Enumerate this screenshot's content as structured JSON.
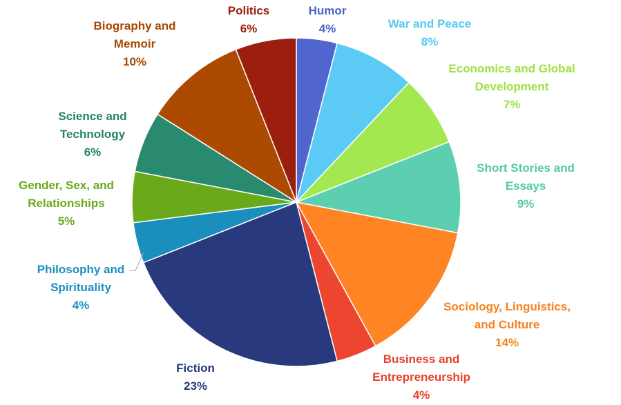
{
  "chart_data": {
    "type": "pie",
    "title": "",
    "slices": [
      {
        "label": "Humor",
        "value": 4,
        "percent_label": "4%",
        "color": "#5065CD"
      },
      {
        "label": "War and Peace",
        "value": 8,
        "percent_label": "8%",
        "color": "#5BCBF5"
      },
      {
        "label": "Economics and Global Development",
        "value": 7,
        "percent_label": "7%",
        "color": "#A4E851"
      },
      {
        "label": "Short Stories and Essays",
        "value": 9,
        "percent_label": "9%",
        "color": "#5CCFB1"
      },
      {
        "label": "Sociology, Linguistics, and Culture",
        "value": 14,
        "percent_label": "14%",
        "color": "#FF8423"
      },
      {
        "label": "Business and Entrepreneurship",
        "value": 4,
        "percent_label": "4%",
        "color": "#EC4630"
      },
      {
        "label": "Fiction",
        "value": 23,
        "percent_label": "23%",
        "color": "#283A7D"
      },
      {
        "label": "Philosophy and Spirituality",
        "value": 4,
        "percent_label": "4%",
        "color": "#1A8FBE"
      },
      {
        "label": "Gender, Sex, and Relationships",
        "value": 5,
        "percent_label": "5%",
        "color": "#6AAA1A"
      },
      {
        "label": "Science and Technology",
        "value": 6,
        "percent_label": "6%",
        "color": "#2A8A70"
      },
      {
        "label": "Biography and Memoir",
        "value": 10,
        "percent_label": "10%",
        "color": "#AB4A00"
      },
      {
        "label": "Politics",
        "value": 6,
        "percent_label": "6%",
        "color": "#9C1E0E"
      }
    ],
    "label_colors": [
      "#4A62C8",
      "#57C8F2",
      "#9EE040",
      "#52C8A8",
      "#F58220",
      "#E4402A",
      "#243A7A",
      "#1E8EC0",
      "#6AA81C",
      "#24846A",
      "#A84800",
      "#9A1C0A"
    ],
    "legend": "none"
  }
}
